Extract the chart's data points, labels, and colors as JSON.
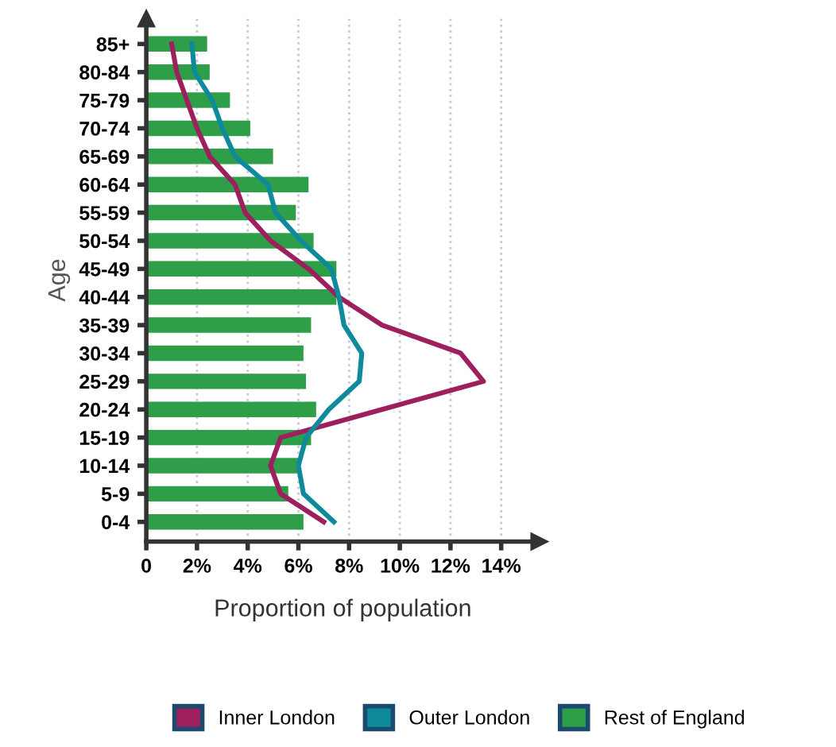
{
  "chart_data": {
    "type": "bar",
    "orientation": "horizontal",
    "ylabel": "Age",
    "xlabel": "Proportion of population",
    "categories": [
      "85+",
      "80-84",
      "75-79",
      "70-74",
      "65-69",
      "60-64",
      "55-59",
      "50-54",
      "45-49",
      "40-44",
      "35-39",
      "30-34",
      "25-29",
      "20-24",
      "15-19",
      "10-14",
      "5-9",
      "0-4"
    ],
    "series": [
      {
        "name": "Inner London",
        "type": "line",
        "color": "#9e1f5e",
        "values": [
          1.0,
          1.2,
          1.6,
          2.0,
          2.5,
          3.5,
          3.9,
          4.9,
          6.4,
          7.6,
          9.3,
          12.4,
          13.3,
          9.3,
          5.3,
          4.9,
          5.3,
          7.0
        ]
      },
      {
        "name": "Outer London",
        "type": "line",
        "color": "#0f8a9b",
        "values": [
          1.8,
          1.9,
          2.6,
          3.0,
          3.5,
          4.8,
          5.1,
          6.1,
          7.3,
          7.6,
          7.8,
          8.5,
          8.4,
          7.2,
          6.3,
          6.0,
          6.2,
          7.4
        ]
      },
      {
        "name": "Rest of England",
        "color": "#2e9e48",
        "values": [
          2.4,
          2.5,
          3.3,
          4.1,
          5.0,
          6.4,
          5.9,
          6.6,
          7.5,
          7.5,
          6.5,
          6.2,
          6.3,
          6.7,
          6.5,
          6.0,
          5.6,
          6.2
        ]
      }
    ],
    "xlim": [
      0,
      15.5
    ],
    "xticks": [
      0,
      {
        "value": 2,
        "label": "2%"
      },
      {
        "value": 4,
        "label": "4%"
      },
      {
        "value": 6,
        "label": "6%"
      },
      {
        "value": 8,
        "label": "8%"
      },
      {
        "value": 10,
        "label": "10%"
      },
      {
        "value": 12,
        "label": "12%"
      },
      {
        "value": 14,
        "label": "14%"
      }
    ],
    "grid": "x",
    "legend": "bottom",
    "line_style": "solid"
  }
}
